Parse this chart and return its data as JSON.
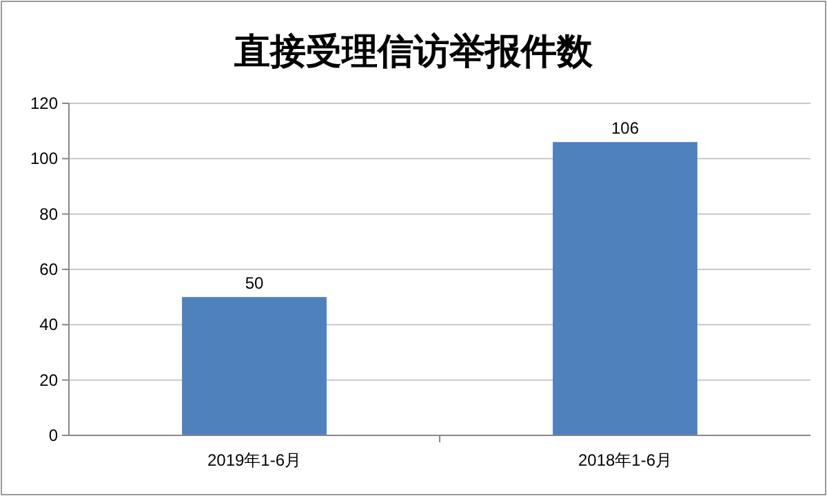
{
  "chart_data": {
    "type": "bar",
    "title": "直接受理信访举报件数",
    "categories": [
      "2019年1-6月",
      "2018年1-6月"
    ],
    "values": [
      50,
      106
    ],
    "color": "#4f81bd",
    "ylim": [
      0,
      120
    ],
    "yticks": [
      0,
      20,
      40,
      60,
      80,
      100,
      120
    ],
    "grid": "y",
    "data_labels": true
  }
}
